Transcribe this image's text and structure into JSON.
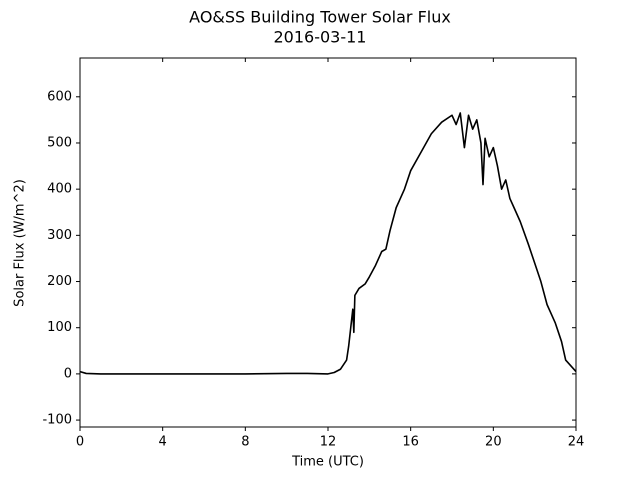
{
  "chart_data": {
    "type": "line",
    "title": "AO&SS Building Tower Solar Flux",
    "subtitle": "2016-03-11",
    "x_label": "Time (UTC)",
    "y_label": "Solar Flux (W/m^2)",
    "xlim": [
      0,
      24
    ],
    "xticks": [
      0,
      4,
      8,
      12,
      16,
      20,
      24
    ],
    "ylim": [
      -115,
      684
    ],
    "yticks": [
      -100,
      0,
      100,
      200,
      300,
      400,
      500,
      600
    ],
    "x": [
      0,
      0.3,
      1,
      4,
      8,
      10,
      11,
      12,
      12.3,
      12.6,
      12.9,
      13.0,
      13.1,
      13.2,
      13.25,
      13.3,
      13.5,
      13.8,
      14,
      14.3,
      14.6,
      14.8,
      15,
      15.3,
      15.5,
      15.7,
      16,
      16.5,
      17,
      17.5,
      18,
      18.2,
      18.4,
      18.6,
      18.8,
      19,
      19.2,
      19.4,
      19.5,
      19.6,
      19.8,
      20,
      20.2,
      20.4,
      20.6,
      20.8,
      21,
      21.3,
      21.7,
      22,
      22.3,
      22.6,
      22.8,
      23,
      23.3,
      23.5,
      24
    ],
    "series": [
      {
        "color": "#000000",
        "values": [
          5,
          1,
          0,
          0,
          0,
          1,
          1,
          0,
          3,
          10,
          30,
          60,
          100,
          140,
          90,
          170,
          185,
          195,
          210,
          235,
          265,
          270,
          310,
          360,
          380,
          400,
          440,
          480,
          520,
          545,
          560,
          540,
          565,
          490,
          560,
          530,
          550,
          500,
          410,
          510,
          470,
          490,
          450,
          400,
          420,
          380,
          360,
          330,
          280,
          240,
          200,
          150,
          130,
          110,
          70,
          30,
          5
        ]
      }
    ]
  }
}
